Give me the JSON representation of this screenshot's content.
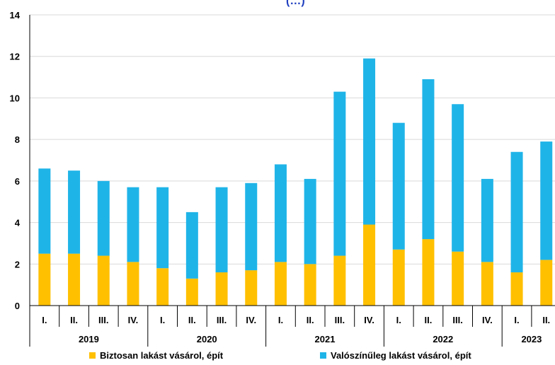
{
  "chart_data": {
    "type": "bar",
    "stacked": true,
    "title": "(…)",
    "ylim": [
      0,
      14
    ],
    "yticks": [
      0,
      2,
      4,
      6,
      8,
      10,
      12,
      14
    ],
    "grid": true,
    "legend_position": "bottom",
    "categories": [
      "I.",
      "II.",
      "III.",
      "IV.",
      "I.",
      "II.",
      "III.",
      "IV.",
      "I.",
      "II.",
      "III.",
      "IV.",
      "I.",
      "II.",
      "III.",
      "IV.",
      "I.",
      "II."
    ],
    "years": [
      {
        "label": "2019",
        "span": 4
      },
      {
        "label": "2020",
        "span": 4
      },
      {
        "label": "2021",
        "span": 4
      },
      {
        "label": "2022",
        "span": 4
      },
      {
        "label": "2023",
        "span": 2
      }
    ],
    "series": [
      {
        "name": "Biztosan lakást vásárol, épít",
        "color": "#ffc000",
        "values": [
          2.5,
          2.5,
          2.4,
          2.1,
          1.8,
          1.3,
          1.6,
          1.7,
          2.1,
          2.0,
          2.4,
          3.9,
          2.7,
          3.2,
          2.6,
          2.1,
          1.6,
          2.2
        ]
      },
      {
        "name": "Valószínűleg lakást vásárol, épít",
        "color": "#1fb4e8",
        "values": [
          4.1,
          4.0,
          3.6,
          3.6,
          3.9,
          3.2,
          4.1,
          4.2,
          4.7,
          4.1,
          7.9,
          8.0,
          6.1,
          7.7,
          7.1,
          4.0,
          5.8,
          5.7
        ]
      }
    ]
  }
}
